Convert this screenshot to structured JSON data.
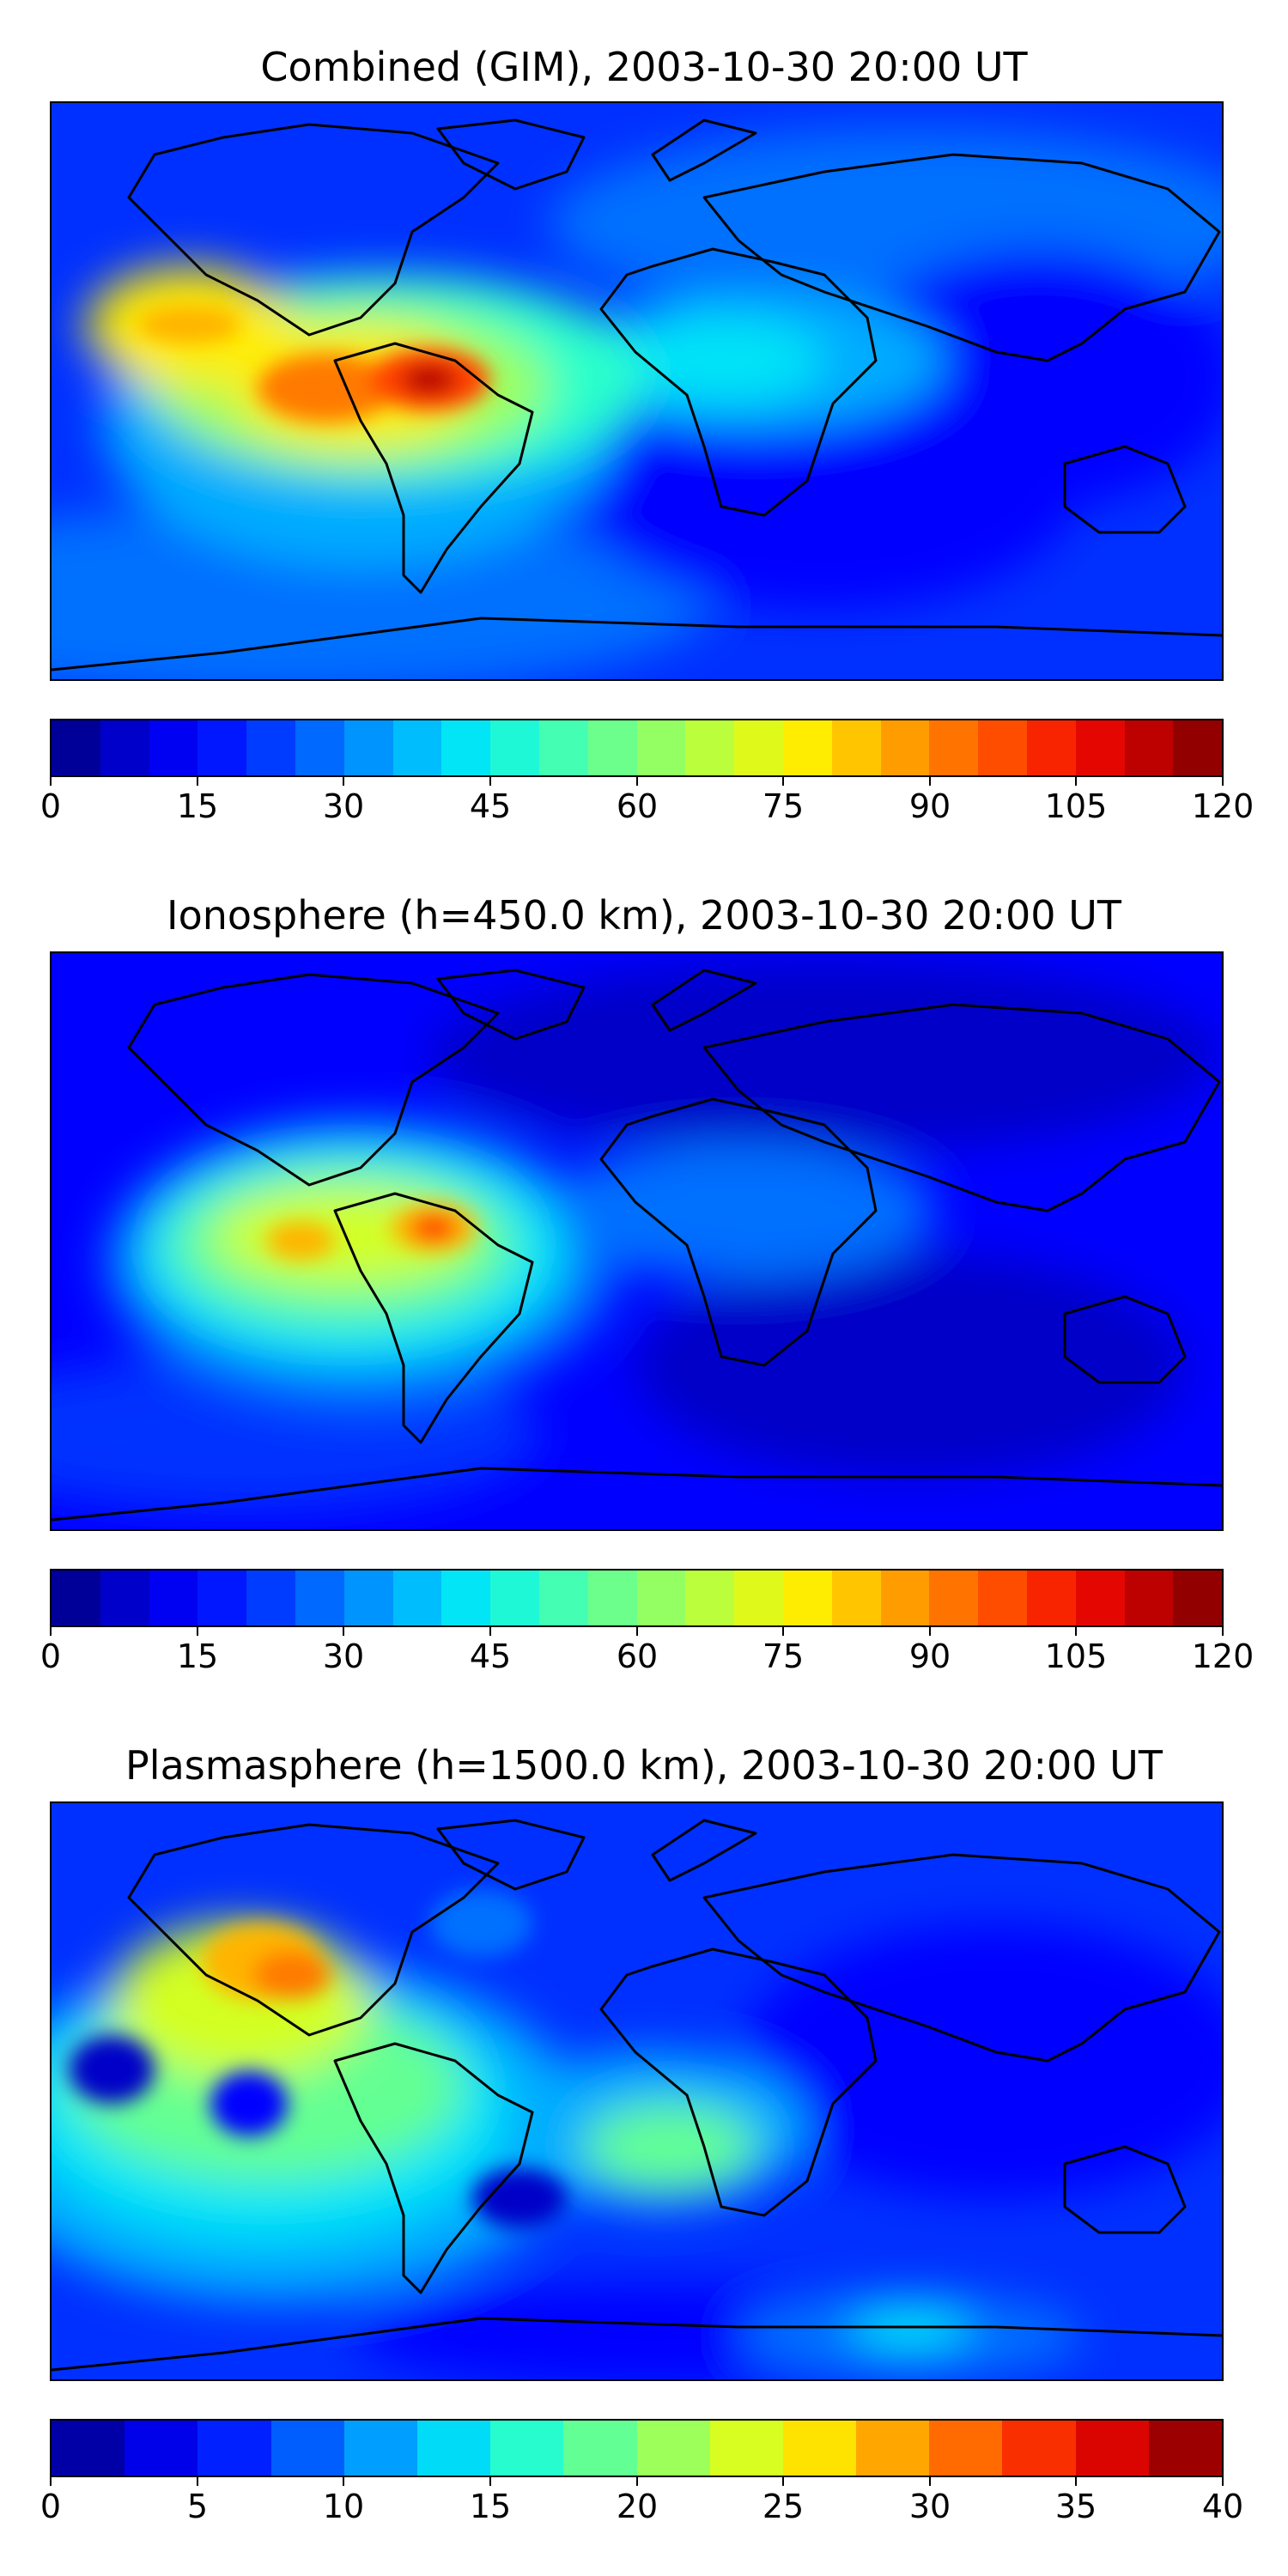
{
  "panels": [
    {
      "title": "Combined (GIM), 2003-10-30 20:00 UT",
      "colorbar": {
        "ticks": [
          "0",
          "15",
          "30",
          "45",
          "60",
          "75",
          "90",
          "105",
          "120"
        ],
        "min": 0,
        "max": 120,
        "levels": 24
      }
    },
    {
      "title": "Ionosphere  (h=450.0 km), 2003-10-30 20:00 UT",
      "colorbar": {
        "ticks": [
          "0",
          "15",
          "30",
          "45",
          "60",
          "75",
          "90",
          "105",
          "120"
        ],
        "min": 0,
        "max": 120,
        "levels": 24
      }
    },
    {
      "title": "Plasmasphere (h=1500.0 km), 2003-10-30 20:00 UT",
      "colorbar": {
        "ticks": [
          "0",
          "5",
          "10",
          "15",
          "20",
          "25",
          "30",
          "35",
          "40"
        ],
        "min": 0,
        "max": 40,
        "levels": 16
      }
    }
  ],
  "colormap": "jet",
  "colors": {
    "jet": [
      "#00007f",
      "#0000c8",
      "#0000ff",
      "#0030ff",
      "#0070ff",
      "#00acff",
      "#00e4f7",
      "#2bffcb",
      "#64ff93",
      "#9bff5b",
      "#d3ff24",
      "#ffec00",
      "#ffb400",
      "#ff7a00",
      "#ff4300",
      "#f10800",
      "#b80000",
      "#7f0000"
    ],
    "coastline": "#000000"
  }
}
